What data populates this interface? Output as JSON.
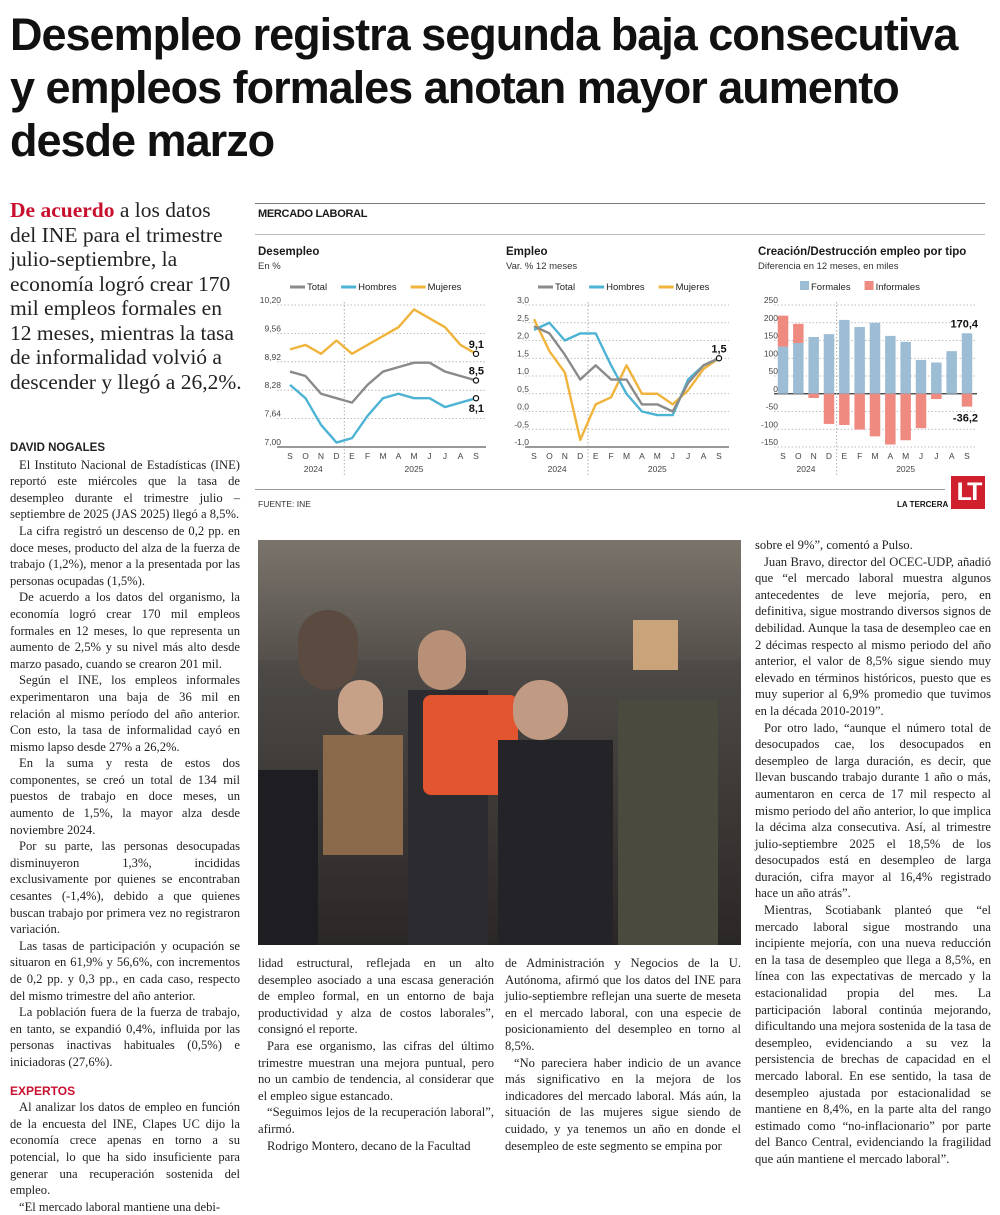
{
  "headline": "Desempleo registra segunda baja consecutiva y empleos formales anotan mayor aumento desde marzo",
  "intro": {
    "lead": "De acuerdo",
    "text": " a los datos del INE para el trimestre julio-septiembre, la economía logró crear 170 mil empleos formales en 12 meses, mientras la tasa de informalidad volvió a descender y llegó a 26,2%."
  },
  "infographic": {
    "section": "MERCADO LABORAL",
    "source": "FUENTE: INE",
    "brand": "LA TERCERA",
    "logo": "LT"
  },
  "colors": {
    "total": "#8a8a8a",
    "hombres": "#4cb3d4",
    "mujeres": "#f0b43c",
    "formales": "#9dbdd4",
    "informales": "#ef8a80",
    "accent": "#c8102e"
  },
  "chart_data": [
    {
      "type": "line",
      "title": "Desempleo",
      "subtitle": "En %",
      "categories": [
        "S",
        "O",
        "N",
        "D",
        "E",
        "F",
        "M",
        "A",
        "M",
        "J",
        "J",
        "A",
        "S"
      ],
      "years": [
        "2024",
        "2025"
      ],
      "ylim": [
        7.0,
        10.2
      ],
      "yticks": [
        "7,00",
        "7,64",
        "8,28",
        "8,92",
        "9,56",
        "10,20"
      ],
      "grid": true,
      "legend": "top",
      "series": [
        {
          "name": "Total",
          "values": [
            8.7,
            8.6,
            8.2,
            8.1,
            8.0,
            8.4,
            8.7,
            8.8,
            8.9,
            8.9,
            8.7,
            8.6,
            8.5
          ],
          "end_label": "8,5"
        },
        {
          "name": "Hombres",
          "values": [
            8.4,
            8.1,
            7.5,
            7.1,
            7.2,
            7.7,
            8.1,
            8.2,
            8.1,
            8.1,
            7.9,
            8.0,
            8.1
          ],
          "end_label": "8,1"
        },
        {
          "name": "Mujeres",
          "values": [
            9.2,
            9.3,
            9.1,
            9.4,
            9.1,
            9.3,
            9.5,
            9.7,
            10.1,
            9.9,
            9.7,
            9.3,
            9.1
          ],
          "end_label": "9,1"
        }
      ]
    },
    {
      "type": "line",
      "title": "Empleo",
      "subtitle": "Var. % 12 meses",
      "categories": [
        "S",
        "O",
        "N",
        "D",
        "E",
        "F",
        "M",
        "A",
        "M",
        "J",
        "J",
        "A",
        "S"
      ],
      "years": [
        "2024",
        "2025"
      ],
      "ylim": [
        -1.0,
        3.0
      ],
      "yticks": [
        "-1,0",
        "-0,5",
        "0,0",
        "0,5",
        "1,0",
        "1,5",
        "2,0",
        "2,5",
        "3,0"
      ],
      "grid": true,
      "legend": "top",
      "series": [
        {
          "name": "Total",
          "values": [
            2.4,
            2.2,
            1.6,
            0.9,
            1.3,
            0.9,
            0.9,
            0.2,
            0.2,
            0.0,
            0.8,
            1.3,
            1.5
          ],
          "end_label": "1,5"
        },
        {
          "name": "Hombres",
          "values": [
            2.3,
            2.5,
            2.0,
            2.2,
            2.2,
            1.3,
            0.5,
            0.0,
            -0.1,
            -0.1,
            0.9,
            1.3,
            1.5
          ]
        },
        {
          "name": "Mujeres",
          "values": [
            2.6,
            1.7,
            1.1,
            -0.8,
            0.2,
            0.4,
            1.3,
            0.5,
            0.5,
            0.2,
            0.6,
            1.2,
            1.5
          ]
        }
      ]
    },
    {
      "type": "bar",
      "title": "Creación/Destrucción empleo por tipo",
      "subtitle": "Diferencia en 12 meses, en miles",
      "categories": [
        "S",
        "O",
        "N",
        "D",
        "E",
        "F",
        "M",
        "A",
        "M",
        "J",
        "J",
        "A",
        "S"
      ],
      "years": [
        "2024",
        "2025"
      ],
      "ylim": [
        -150,
        250
      ],
      "yticks": [
        "-150",
        "-100",
        "-50",
        "0",
        "50",
        "100",
        "150",
        "200",
        "250"
      ],
      "grid": true,
      "legend": "top",
      "series": [
        {
          "name": "Formales",
          "values": [
            133,
            143,
            160,
            168,
            208,
            188,
            200,
            163,
            146,
            95,
            88,
            120,
            170.4
          ],
          "end_label": "170,4"
        },
        {
          "name": "Informales",
          "values": [
            87,
            54,
            -12,
            -85,
            -88,
            -101,
            -120,
            -143,
            -131,
            -97,
            -15,
            0,
            -36.2
          ],
          "end_label": "-36,2"
        }
      ]
    }
  ],
  "col1": {
    "byline": "DAVID NOGALES",
    "p": [
      "El Instituto Nacional de Estadísticas (INE) reportó este miércoles que la tasa de desempleo durante el trimestre julio – septiembre de 2025 (JAS 2025) llegó a 8,5%.",
      "La cifra registró un descenso de 0,2 pp. en doce meses, producto del alza de la fuerza de trabajo (1,2%), menor a la presentada por las personas ocupadas (1,5%).",
      "De acuerdo a los datos del organismo, la economía logró crear 170 mil empleos formales en 12 meses, lo que representa un aumento de 2,5% y su nivel más alto desde marzo pasado, cuando se crearon 201 mil.",
      "Según el INE, los empleos informales experimentaron una baja de 36 mil en relación al mismo período del año anterior. Con esto, la tasa de informalidad cayó en mismo lapso desde 27% a 26,2%.",
      "En la suma y resta de estos dos componentes, se creó un total de 134 mil puestos de trabajo en doce meses, un aumento de 1,5%, la mayor alza desde noviembre 2024.",
      "Por su parte, las personas desocupadas disminuyeron 1,3%, incididas exclusivamente por quienes se encontraban cesantes (-1,4%), debido a que quienes buscan trabajo por primera vez no registraron variación.",
      "Las tasas de participación y ocupación se situaron en 61,9% y 56,6%, con incrementos de 0,2 pp. y 0,3 pp., en cada caso, respecto del mismo trimestre del año anterior.",
      "La población fuera de la fuerza de trabajo, en tanto, se expandió 0,4%, influida por las personas inactivas habituales (0,5%) e iniciadoras (27,6%)."
    ],
    "subhead": "EXPERTOS",
    "p2": [
      "Al analizar los datos de empleo en función de la encuesta del INE, Clapes UC dijo la economía crece apenas en torno a su potencial, lo que ha sido insuficiente para generar una recuperación sostenida del empleo.",
      "“El mercado laboral mantiene una debi-"
    ]
  },
  "col2": {
    "p": [
      "lidad estructural, reflejada en un alto desempleo asociado a una escasa generación de empleo formal, en un entorno de baja productividad y alza de costos laborales”, consignó el reporte.",
      "Para ese organismo, las cifras del último trimestre muestran una mejora puntual, pero no un cambio de tendencia, al considerar que el empleo sigue estancado.",
      "“Seguimos lejos de la recuperación laboral”, afirmó.",
      "Rodrigo Montero, decano de la Facultad"
    ]
  },
  "col3": {
    "p": [
      "de Administración y Negocios de la U. Autónoma, afirmó que los datos del INE para julio-septiembre reflejan una suerte de meseta en el mercado laboral, con una especie de posicionamiento del desempleo en torno al 8,5%.",
      "“No pareciera haber indicio de un avance más significativo en la mejora de los indicadores del mercado laboral. Más aún, la situación de las mujeres sigue siendo de cuidado, y ya tenemos un año en donde el desempleo de este segmento se empina por"
    ]
  },
  "col4": {
    "p": [
      "sobre el 9%”, comentó a Pulso.",
      "Juan Bravo, director del OCEC-UDP, añadió que “el mercado laboral muestra algunos antecedentes de leve mejoría, pero, en definitiva, sigue mostrando diversos signos de debilidad. Aunque la tasa de desempleo cae en 2 décimas respecto al mismo periodo del año anterior, el valor de 8,5% sigue siendo muy elevado en términos históricos, puesto que es muy superior al 6,9% promedio que tuvimos en la década 2010-2019”.",
      "Por otro lado, “aunque el número total de desocupados cae, los desocupados en desempleo de larga duración, es decir, que llevan buscando trabajo durante 1 año o más, aumentaron en cerca de 17 mil respecto al mismo periodo del año anterior, lo que implica la décima alza consecutiva. Así, al trimestre julio-septiembre 2025 el 18,5% de los desocupados está en desempleo de larga duración, cifra mayor al 16,4% registrado hace un año atrás”.",
      "Mientras, Scotiabank planteó que “el mercado laboral sigue mostrando una incipiente mejoría, con una nueva reducción en la tasa de desempleo que llega a 8,5%, en línea con las expectativas de mercado y la estacionalidad propia del mes. La participación laboral continúa mejorando, dificultando una mejora sostenida de la tasa de desempleo, evidenciando a su vez la persistencia de brechas de capacidad en el mercado laboral. En ese sentido, la tasa de desempleo ajustada por estacionalidad se mantiene en 8,4%, en la parte alta del rango estimado como “no-inflacionario” por parte del Banco Central, evidenciando la fragilidad que aún mantiene el mercado laboral”."
    ]
  }
}
